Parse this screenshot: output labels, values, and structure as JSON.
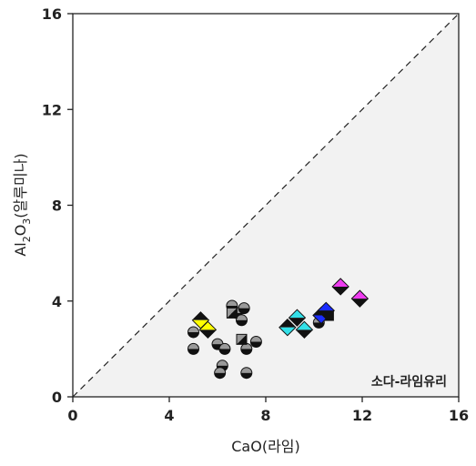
{
  "chart_data": {
    "type": "scatter",
    "xlabel": "CaO(라임)",
    "ylabel_parts": {
      "main": "Al",
      "sub1": "2",
      "mid": "O",
      "sub2": "3",
      "rest": "(알루미나)"
    },
    "xlim": [
      0,
      16
    ],
    "ylim": [
      0,
      16
    ],
    "xticks": [
      "0",
      "4",
      "8",
      "12",
      "16"
    ],
    "yticks": [
      "0",
      "4",
      "8",
      "12",
      "16"
    ],
    "grid": false,
    "legend": "none",
    "region_label": "소다-라임유리",
    "reference_line": {
      "x": [
        0,
        16
      ],
      "y": [
        0,
        16
      ],
      "style": "dashed"
    },
    "shaded_region": "below-diagonal",
    "colors": {
      "shade": "#f2f2f2",
      "gray": "#9a9a9a",
      "black": "#111111",
      "yellow": "#ffff00",
      "cyan": "#33e0e8",
      "blue": "#1a2cff",
      "magenta": "#ee3cf0"
    },
    "series": [
      {
        "marker": "circle-half",
        "points": [
          [
            5.0,
            2.7
          ],
          [
            5.0,
            2.0
          ],
          [
            6.0,
            2.2
          ],
          [
            6.3,
            2.0
          ],
          [
            6.2,
            1.3
          ],
          [
            6.1,
            1.0
          ],
          [
            6.6,
            3.8
          ],
          [
            6.8,
            3.5
          ],
          [
            7.0,
            3.2
          ],
          [
            7.1,
            3.7
          ],
          [
            7.2,
            2.0
          ],
          [
            7.2,
            1.0
          ],
          [
            7.6,
            2.3
          ],
          [
            10.2,
            3.1
          ]
        ]
      },
      {
        "marker": "square-diag",
        "points": [
          [
            6.6,
            3.5
          ],
          [
            7.0,
            2.4
          ],
          [
            10.6,
            3.4
          ]
        ]
      },
      {
        "marker": "diamond",
        "points": [
          {
            "x": 5.3,
            "y": 3.2,
            "top": "black",
            "bottom": "yellow"
          },
          {
            "x": 5.6,
            "y": 2.8,
            "top": "yellow",
            "bottom": "black"
          },
          {
            "x": 8.9,
            "y": 2.9,
            "top": "black",
            "bottom": "cyan"
          },
          {
            "x": 9.3,
            "y": 3.3,
            "top": "cyan",
            "bottom": "black"
          },
          {
            "x": 9.6,
            "y": 2.8,
            "top": "cyan",
            "bottom": "black"
          },
          {
            "x": 10.3,
            "y": 3.4,
            "top": "black",
            "bottom": "blue"
          },
          {
            "x": 10.5,
            "y": 3.6,
            "top": "blue",
            "bottom": "black"
          },
          {
            "x": 11.1,
            "y": 4.6,
            "top": "magenta",
            "bottom": "black"
          },
          {
            "x": 11.9,
            "y": 4.1,
            "top": "magenta",
            "bottom": "black"
          }
        ]
      }
    ]
  }
}
